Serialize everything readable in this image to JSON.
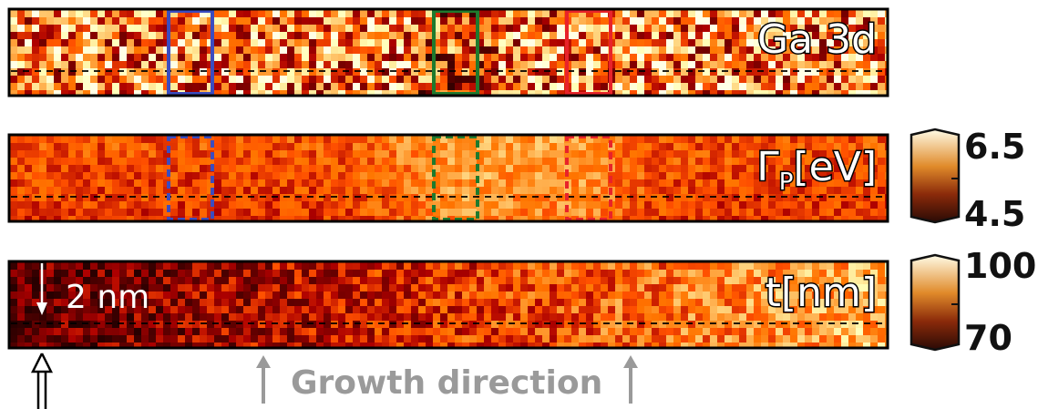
{
  "panels": [
    {
      "id": "ga3d",
      "label": "Ga 3d",
      "colormap": "afmhot",
      "style": "speckled",
      "boxes_dashed": false
    },
    {
      "id": "gamma",
      "label_main": "Γ",
      "label_sub": "P",
      "label_tail": "[eV]",
      "colormap": "afmhot",
      "style": "smooth",
      "boxes_dashed": true
    },
    {
      "id": "thickness",
      "label": "t[nm]",
      "colormap": "afmhot",
      "style": "gradient",
      "boxes_dashed": false
    }
  ],
  "region_boxes": [
    {
      "color": "#3b4cc0",
      "name": "blue"
    },
    {
      "color": "#1f7a2e",
      "name": "green"
    },
    {
      "color": "#e8232a",
      "name": "red"
    }
  ],
  "colorbars": [
    {
      "for": "gamma",
      "max_label": "6.5",
      "min_label": "4.5"
    },
    {
      "for": "thickness",
      "max_label": "100",
      "min_label": "70"
    }
  ],
  "annotations": {
    "scale_label": "2 nm",
    "growth_label": "Growth direction"
  },
  "colors": {
    "growth_text": "#9a9a9a",
    "frame": "#000000"
  }
}
